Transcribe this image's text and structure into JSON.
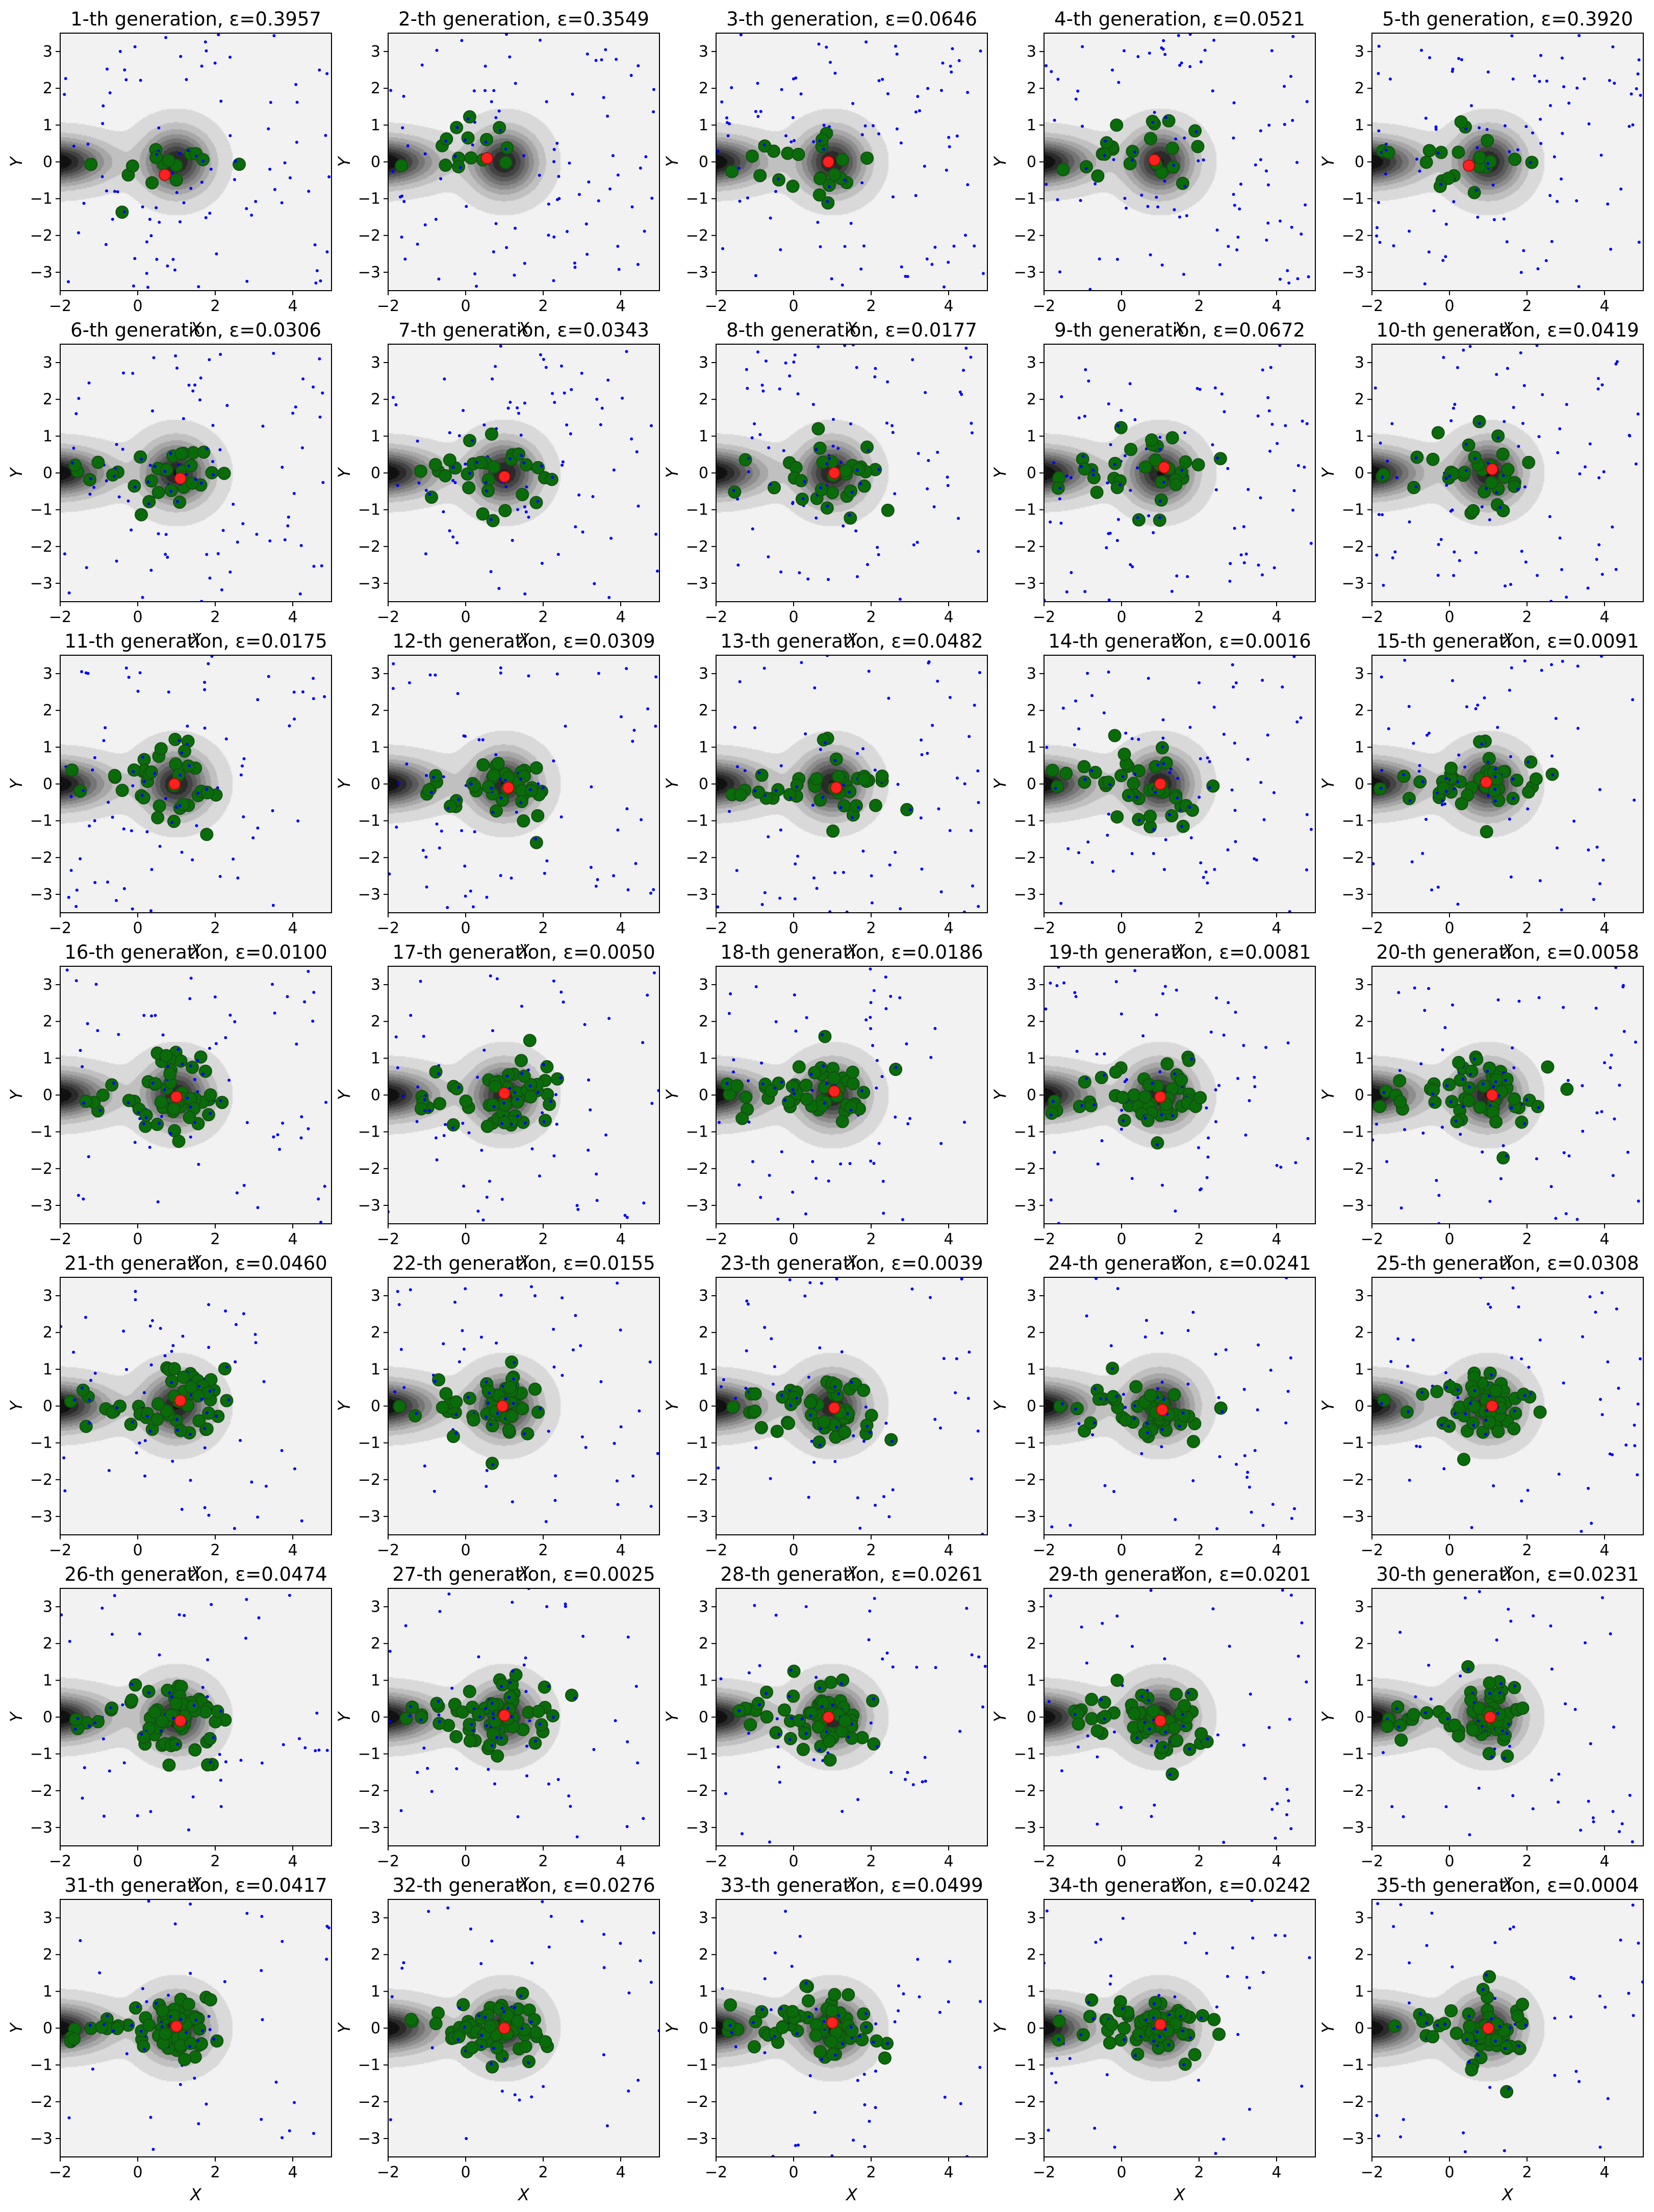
{
  "figure": {
    "grid": {
      "rows": 7,
      "cols": 5
    },
    "common_axes": {
      "xlabel": "X",
      "ylabel": "Y",
      "xlim": [
        -2,
        5
      ],
      "ylim": [
        -3.5,
        3.5
      ],
      "xticks": [
        -2,
        0,
        2,
        4
      ],
      "yticks": [
        -3,
        -2,
        -1,
        0,
        1,
        2,
        3
      ],
      "xlabel_shown_on_bottom_row_only": true,
      "grid": false
    },
    "colors": {
      "background_level": "#f2f2f2",
      "contour_darkest": "#111111",
      "random_points": "#0000ff",
      "accepted_points": "#0a6b0a",
      "accepted_points_edge": "#125012",
      "estimate_marker": "#ff2020"
    },
    "contour": {
      "type": "filled_contour",
      "description_levels": 9,
      "modes": [
        {
          "center": [
            1.0,
            0.0
          ],
          "spread": [
            0.55,
            0.55
          ]
        },
        {
          "center": [
            -2.2,
            0.0
          ],
          "spread": [
            0.9,
            0.4
          ]
        }
      ]
    },
    "markers": {
      "random_points": "small blue dots",
      "accepted_points": "green filled circles",
      "estimate": "red point"
    }
  },
  "chart_data": [
    {
      "type": "scatter",
      "title": "1-th generation, ε=0.3957",
      "generation": 1,
      "epsilon": 0.3957,
      "accepted_count": 15,
      "random_count": 90,
      "estimate": [
        0.7,
        -0.35
      ]
    },
    {
      "type": "scatter",
      "title": "2-th generation, ε=0.3549",
      "generation": 2,
      "epsilon": 0.3549,
      "accepted_count": 15,
      "random_count": 90,
      "estimate": [
        0.55,
        0.1
      ]
    },
    {
      "type": "scatter",
      "title": "3-th generation, ε=0.0646",
      "generation": 3,
      "epsilon": 0.0646,
      "accepted_count": 22,
      "random_count": 90,
      "estimate": [
        0.9,
        0.0
      ]
    },
    {
      "type": "scatter",
      "title": "4-th generation, ε=0.0521",
      "generation": 4,
      "epsilon": 0.0521,
      "accepted_count": 22,
      "random_count": 90,
      "estimate": [
        0.85,
        0.05
      ]
    },
    {
      "type": "scatter",
      "title": "5-th generation, ε=0.3920",
      "generation": 5,
      "epsilon": 0.392,
      "accepted_count": 20,
      "random_count": 90,
      "estimate": [
        0.5,
        -0.1
      ]
    },
    {
      "type": "scatter",
      "title": "6-th generation, ε=0.0306",
      "generation": 6,
      "epsilon": 0.0306,
      "accepted_count": 30,
      "random_count": 80,
      "estimate": [
        1.1,
        -0.15
      ]
    },
    {
      "type": "scatter",
      "title": "7-th generation, ε=0.0343",
      "generation": 7,
      "epsilon": 0.0343,
      "accepted_count": 30,
      "random_count": 80,
      "estimate": [
        1.0,
        -0.1
      ]
    },
    {
      "type": "scatter",
      "title": "8-th generation, ε=0.0177",
      "generation": 8,
      "epsilon": 0.0177,
      "accepted_count": 30,
      "random_count": 80,
      "estimate": [
        1.05,
        0.0
      ]
    },
    {
      "type": "scatter",
      "title": "9-th generation, ε=0.0672",
      "generation": 9,
      "epsilon": 0.0672,
      "accepted_count": 32,
      "random_count": 80,
      "estimate": [
        1.1,
        0.15
      ]
    },
    {
      "type": "scatter",
      "title": "10-th generation, ε=0.0419",
      "generation": 10,
      "epsilon": 0.0419,
      "accepted_count": 32,
      "random_count": 80,
      "estimate": [
        1.1,
        0.1
      ]
    },
    {
      "type": "scatter",
      "title": "11-th generation, ε=0.0175",
      "generation": 11,
      "epsilon": 0.0175,
      "accepted_count": 36,
      "random_count": 70,
      "estimate": [
        0.95,
        0.0
      ]
    },
    {
      "type": "scatter",
      "title": "12-th generation, ε=0.0309",
      "generation": 12,
      "epsilon": 0.0309,
      "accepted_count": 40,
      "random_count": 70,
      "estimate": [
        1.1,
        -0.1
      ]
    },
    {
      "type": "scatter",
      "title": "13-th generation, ε=0.0482",
      "generation": 13,
      "epsilon": 0.0482,
      "accepted_count": 40,
      "random_count": 70,
      "estimate": [
        1.1,
        -0.1
      ]
    },
    {
      "type": "scatter",
      "title": "14-th generation, ε=0.0016",
      "generation": 14,
      "epsilon": 0.0016,
      "accepted_count": 40,
      "random_count": 70,
      "estimate": [
        1.0,
        0.0
      ]
    },
    {
      "type": "scatter",
      "title": "15-th generation, ε=0.0091",
      "generation": 15,
      "epsilon": 0.0091,
      "accepted_count": 42,
      "random_count": 60,
      "estimate": [
        0.95,
        0.05
      ]
    },
    {
      "type": "scatter",
      "title": "16-th generation, ε=0.0100",
      "generation": 16,
      "epsilon": 0.01,
      "accepted_count": 50,
      "random_count": 60,
      "estimate": [
        1.0,
        -0.05
      ]
    },
    {
      "type": "scatter",
      "title": "17-th generation, ε=0.0050",
      "generation": 17,
      "epsilon": 0.005,
      "accepted_count": 50,
      "random_count": 60,
      "estimate": [
        1.0,
        0.05
      ]
    },
    {
      "type": "scatter",
      "title": "18-th generation, ε=0.0186",
      "generation": 18,
      "epsilon": 0.0186,
      "accepted_count": 50,
      "random_count": 60,
      "estimate": [
        1.05,
        0.1
      ]
    },
    {
      "type": "scatter",
      "title": "19-th generation, ε=0.0081",
      "generation": 19,
      "epsilon": 0.0081,
      "accepted_count": 50,
      "random_count": 60,
      "estimate": [
        1.0,
        -0.05
      ]
    },
    {
      "type": "scatter",
      "title": "20-th generation, ε=0.0058",
      "generation": 20,
      "epsilon": 0.0058,
      "accepted_count": 50,
      "random_count": 60,
      "estimate": [
        1.1,
        0.0
      ]
    },
    {
      "type": "scatter",
      "title": "21-th generation, ε=0.0460",
      "generation": 21,
      "epsilon": 0.046,
      "accepted_count": 50,
      "random_count": 50,
      "estimate": [
        1.1,
        0.15
      ]
    },
    {
      "type": "scatter",
      "title": "22-th generation, ε=0.0155",
      "generation": 22,
      "epsilon": 0.0155,
      "accepted_count": 55,
      "random_count": 50,
      "estimate": [
        0.95,
        0.0
      ]
    },
    {
      "type": "scatter",
      "title": "23-th generation, ε=0.0039",
      "generation": 23,
      "epsilon": 0.0039,
      "accepted_count": 55,
      "random_count": 50,
      "estimate": [
        1.05,
        -0.05
      ]
    },
    {
      "type": "scatter",
      "title": "24-th generation, ε=0.0241",
      "generation": 24,
      "epsilon": 0.0241,
      "accepted_count": 55,
      "random_count": 50,
      "estimate": [
        1.05,
        -0.1
      ]
    },
    {
      "type": "scatter",
      "title": "25-th generation, ε=0.0308",
      "generation": 25,
      "epsilon": 0.0308,
      "accepted_count": 55,
      "random_count": 50,
      "estimate": [
        1.1,
        0.0
      ]
    },
    {
      "type": "scatter",
      "title": "26-th generation, ε=0.0474",
      "generation": 26,
      "epsilon": 0.0474,
      "accepted_count": 58,
      "random_count": 45,
      "estimate": [
        1.1,
        -0.1
      ]
    },
    {
      "type": "scatter",
      "title": "27-th generation, ε=0.0025",
      "generation": 27,
      "epsilon": 0.0025,
      "accepted_count": 58,
      "random_count": 45,
      "estimate": [
        1.0,
        0.05
      ]
    },
    {
      "type": "scatter",
      "title": "28-th generation, ε=0.0261",
      "generation": 28,
      "epsilon": 0.0261,
      "accepted_count": 58,
      "random_count": 45,
      "estimate": [
        0.9,
        0.0
      ]
    },
    {
      "type": "scatter",
      "title": "29-th generation, ε=0.0201",
      "generation": 29,
      "epsilon": 0.0201,
      "accepted_count": 58,
      "random_count": 45,
      "estimate": [
        1.0,
        -0.1
      ]
    },
    {
      "type": "scatter",
      "title": "30-th generation, ε=0.0231",
      "generation": 30,
      "epsilon": 0.0231,
      "accepted_count": 58,
      "random_count": 45,
      "estimate": [
        1.05,
        0.0
      ]
    },
    {
      "type": "scatter",
      "title": "31-th generation, ε=0.0417",
      "generation": 31,
      "epsilon": 0.0417,
      "accepted_count": 60,
      "random_count": 40,
      "estimate": [
        1.0,
        0.05
      ]
    },
    {
      "type": "scatter",
      "title": "32-th generation, ε=0.0276",
      "generation": 32,
      "epsilon": 0.0276,
      "accepted_count": 60,
      "random_count": 40,
      "estimate": [
        1.0,
        0.0
      ]
    },
    {
      "type": "scatter",
      "title": "33-th generation, ε=0.0499",
      "generation": 33,
      "epsilon": 0.0499,
      "accepted_count": 60,
      "random_count": 40,
      "estimate": [
        1.0,
        0.15
      ]
    },
    {
      "type": "scatter",
      "title": "34-th generation, ε=0.0242",
      "generation": 34,
      "epsilon": 0.0242,
      "accepted_count": 60,
      "random_count": 40,
      "estimate": [
        1.0,
        0.1
      ]
    },
    {
      "type": "scatter",
      "title": "35-th generation, ε=0.0004",
      "generation": 35,
      "epsilon": 0.0004,
      "accepted_count": 62,
      "random_count": 40,
      "estimate": [
        1.0,
        0.0
      ]
    }
  ]
}
